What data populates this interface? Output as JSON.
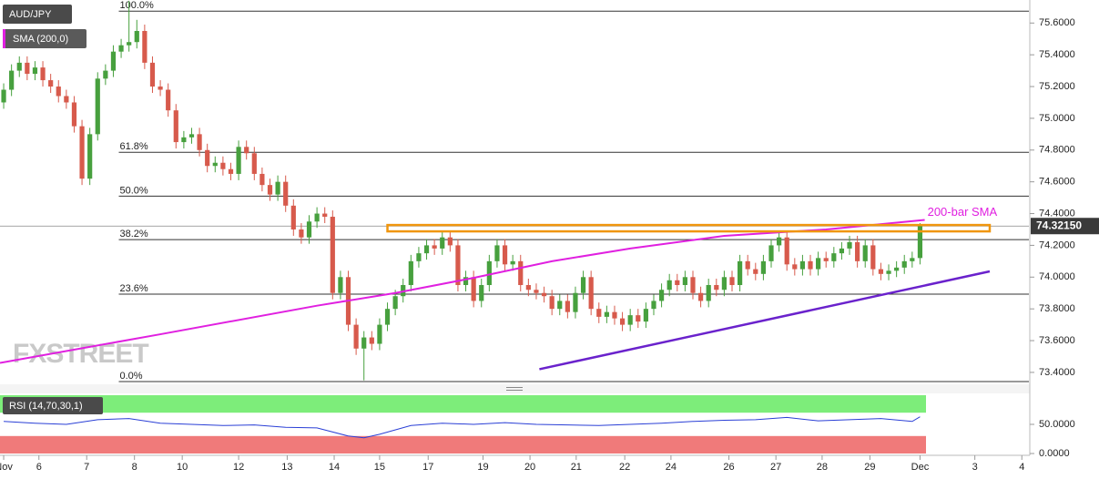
{
  "chart_data": [
    {
      "type": "candlestick",
      "title": "AUD/JPY",
      "up_color": "#47a03e",
      "down_color": "#d75a4c",
      "open": [
        75.1,
        75.18,
        75.3,
        75.35,
        75.28,
        75.32,
        75.24,
        75.2,
        75.14,
        75.1,
        74.95,
        74.62,
        74.9,
        75.25,
        75.3,
        75.42,
        75.46,
        75.48,
        75.55,
        75.35,
        75.2,
        75.18,
        75.05,
        74.85,
        74.88,
        74.9,
        74.8,
        74.7,
        74.72,
        74.68,
        74.65,
        74.82,
        74.78,
        74.65,
        74.58,
        74.52,
        74.6,
        74.45,
        74.3,
        74.25,
        74.35,
        74.4,
        74.38,
        73.9,
        74.0,
        73.7,
        73.55,
        73.62,
        73.58,
        73.7,
        73.8,
        73.88,
        73.95,
        74.1,
        74.15,
        74.2,
        74.18,
        74.25,
        74.2,
        73.95,
        74.0,
        73.85,
        73.95,
        74.1,
        74.2,
        74.08,
        74.1,
        73.95,
        73.92,
        73.9,
        73.88,
        73.8,
        73.85,
        73.78,
        73.9,
        74.0,
        73.8,
        73.75,
        73.78,
        73.74,
        73.7,
        73.76,
        73.72,
        73.8,
        73.85,
        73.92,
        73.98,
        73.95,
        74.0,
        73.9,
        73.85,
        73.95,
        73.92,
        74.0,
        73.95,
        74.1,
        74.05,
        74.02,
        74.1,
        74.2,
        74.25,
        74.08,
        74.05,
        74.1,
        74.05,
        74.12,
        74.1,
        74.15,
        74.18,
        74.22,
        74.1,
        74.2,
        74.05,
        74.02,
        74.04,
        74.06,
        74.1,
        74.12
      ],
      "high": [
        75.22,
        75.34,
        75.39,
        75.39,
        75.36,
        75.36,
        75.28,
        75.24,
        75.18,
        75.14,
        74.99,
        74.94,
        75.29,
        75.34,
        75.46,
        75.5,
        75.74,
        75.62,
        75.59,
        75.39,
        75.24,
        75.22,
        75.09,
        74.92,
        74.94,
        74.94,
        74.84,
        74.76,
        74.76,
        74.72,
        74.86,
        74.86,
        74.82,
        74.69,
        74.62,
        74.64,
        74.64,
        74.49,
        74.34,
        74.39,
        74.44,
        74.44,
        74.42,
        74.04,
        74.04,
        73.74,
        73.66,
        73.66,
        73.74,
        73.84,
        73.92,
        73.99,
        74.14,
        74.19,
        74.24,
        74.24,
        74.29,
        74.29,
        74.24,
        74.04,
        74.04,
        73.99,
        74.14,
        74.24,
        74.24,
        74.14,
        74.14,
        73.99,
        73.96,
        73.94,
        73.92,
        73.89,
        73.89,
        73.94,
        74.04,
        74.04,
        73.84,
        73.82,
        73.82,
        73.78,
        73.8,
        73.8,
        73.84,
        73.89,
        73.96,
        74.02,
        74.02,
        74.04,
        74.04,
        73.94,
        73.99,
        73.99,
        74.04,
        74.04,
        74.14,
        74.14,
        74.09,
        74.14,
        74.24,
        74.29,
        74.29,
        74.12,
        74.14,
        74.14,
        74.16,
        74.16,
        74.19,
        74.22,
        74.26,
        74.26,
        74.24,
        74.24,
        74.09,
        74.08,
        74.1,
        74.14,
        74.16,
        74.34
      ],
      "low": [
        75.06,
        75.14,
        75.26,
        75.24,
        75.24,
        75.2,
        75.16,
        75.1,
        75.06,
        74.91,
        74.58,
        74.58,
        74.86,
        75.21,
        75.26,
        75.38,
        75.42,
        75.44,
        75.31,
        75.16,
        75.14,
        75.01,
        74.81,
        74.81,
        74.84,
        74.76,
        74.66,
        74.66,
        74.64,
        74.61,
        74.61,
        74.74,
        74.61,
        74.54,
        74.48,
        74.48,
        74.41,
        74.26,
        74.21,
        74.21,
        74.31,
        74.34,
        73.86,
        73.86,
        73.66,
        73.51,
        73.35,
        73.54,
        73.54,
        73.66,
        73.76,
        73.84,
        73.91,
        74.06,
        74.11,
        74.14,
        74.14,
        74.16,
        73.91,
        73.91,
        73.81,
        73.81,
        73.91,
        74.06,
        74.04,
        74.04,
        73.91,
        73.88,
        73.86,
        73.84,
        73.76,
        73.76,
        73.74,
        73.74,
        73.86,
        73.76,
        73.71,
        73.71,
        73.7,
        73.66,
        73.66,
        73.68,
        73.68,
        73.76,
        73.81,
        73.88,
        73.91,
        73.91,
        73.86,
        73.81,
        73.81,
        73.88,
        73.88,
        73.91,
        73.91,
        74.01,
        73.98,
        73.98,
        74.06,
        74.16,
        74.04,
        74.01,
        74.01,
        74.01,
        74.01,
        74.06,
        74.06,
        74.11,
        74.14,
        74.06,
        74.06,
        74.01,
        73.98,
        73.98,
        74.0,
        74.02,
        74.06,
        74.08
      ],
      "close": [
        75.18,
        75.3,
        75.35,
        75.28,
        75.32,
        75.24,
        75.2,
        75.14,
        75.1,
        74.95,
        74.62,
        74.9,
        75.25,
        75.3,
        75.42,
        75.46,
        75.48,
        75.55,
        75.35,
        75.2,
        75.18,
        75.05,
        74.85,
        74.88,
        74.9,
        74.8,
        74.7,
        74.72,
        74.68,
        74.65,
        74.82,
        74.78,
        74.65,
        74.58,
        74.52,
        74.6,
        74.45,
        74.3,
        74.25,
        74.35,
        74.4,
        74.38,
        73.9,
        74.0,
        73.7,
        73.55,
        73.62,
        73.58,
        73.7,
        73.8,
        73.88,
        73.95,
        74.1,
        74.15,
        74.2,
        74.18,
        74.25,
        74.2,
        73.95,
        74.0,
        73.85,
        73.95,
        74.1,
        74.2,
        74.08,
        74.1,
        73.95,
        73.92,
        73.9,
        73.88,
        73.8,
        73.85,
        73.78,
        73.9,
        74.0,
        73.8,
        73.75,
        73.78,
        73.74,
        73.7,
        73.76,
        73.72,
        73.8,
        73.85,
        73.92,
        73.98,
        73.95,
        74.0,
        73.9,
        73.85,
        73.95,
        73.92,
        74.0,
        73.95,
        74.1,
        74.05,
        74.02,
        74.1,
        74.2,
        74.25,
        74.08,
        74.05,
        74.1,
        74.05,
        74.12,
        74.1,
        74.15,
        74.18,
        74.22,
        74.1,
        74.2,
        74.05,
        74.02,
        74.04,
        74.06,
        74.1,
        74.12,
        74.32
      ],
      "ylim": [
        73.325,
        75.745
      ],
      "yticks": [
        {
          "value": 73.4,
          "label": "73.4000"
        },
        {
          "value": 73.6,
          "label": "73.6000"
        },
        {
          "value": 73.8,
          "label": "73.8000"
        },
        {
          "value": 74.0,
          "label": "74.0000"
        },
        {
          "value": 74.2,
          "label": "74.2000"
        },
        {
          "value": 74.4,
          "label": "74.4000"
        },
        {
          "value": 74.6,
          "label": "74.6000"
        },
        {
          "value": 74.8,
          "label": "74.8000"
        },
        {
          "value": 75.0,
          "label": "75.0000"
        },
        {
          "value": 75.2,
          "label": "75.2000"
        },
        {
          "value": 75.4,
          "label": "75.4000"
        },
        {
          "value": 75.6,
          "label": "75.6000"
        }
      ],
      "xlim": [
        -0.47,
        130.9
      ],
      "xticks": [
        {
          "value": 0,
          "label": "Nov"
        },
        {
          "value": 4.5,
          "label": "6"
        },
        {
          "value": 10.6,
          "label": "7"
        },
        {
          "value": 16.7,
          "label": "8"
        },
        {
          "value": 22.8,
          "label": "10"
        },
        {
          "value": 30,
          "label": "12"
        },
        {
          "value": 36.2,
          "label": "13"
        },
        {
          "value": 42.2,
          "label": "14"
        },
        {
          "value": 48,
          "label": "15"
        },
        {
          "value": 54.2,
          "label": "17"
        },
        {
          "value": 61.2,
          "label": "19"
        },
        {
          "value": 67.2,
          "label": "20"
        },
        {
          "value": 73.1,
          "label": "21"
        },
        {
          "value": 79.3,
          "label": "22"
        },
        {
          "value": 85.2,
          "label": "24"
        },
        {
          "value": 92.6,
          "label": "26"
        },
        {
          "value": 98.6,
          "label": "27"
        },
        {
          "value": 104.5,
          "label": "28"
        },
        {
          "value": 110.6,
          "label": "29"
        },
        {
          "value": 117,
          "label": "Dec"
        },
        {
          "value": 124,
          "label": "3"
        },
        {
          "value": 130,
          "label": "4"
        }
      ],
      "sma": {
        "name": "SMA (200,0)",
        "color": "#e020e0",
        "annotation": "200-bar SMA",
        "x": [
          -0.47,
          20,
          40,
          50,
          60,
          70,
          80,
          92,
          105,
          117.6
        ],
        "values": [
          73.46,
          73.64,
          73.82,
          73.9,
          73.995,
          74.1,
          74.18,
          74.26,
          74.3,
          74.36
        ]
      },
      "fibonacci": {
        "start_x": 14.7,
        "levels": [
          {
            "value": 75.675,
            "label": "100.0%"
          },
          {
            "value": 74.786,
            "label": "61.8%"
          },
          {
            "value": 74.51,
            "label": "50.0%"
          },
          {
            "value": 74.236,
            "label": "38.2%"
          },
          {
            "value": 73.893,
            "label": "23.6%"
          },
          {
            "value": 73.342,
            "label": "0.0%"
          }
        ]
      },
      "resistance_zone": {
        "x": [
          49,
          125.9
        ],
        "from": 74.288,
        "to": 74.328,
        "color": "#f0960e"
      },
      "trendline": {
        "x": [
          68.4,
          125.9
        ],
        "values": [
          73.42,
          74.036
        ],
        "color": "#6a22cc"
      },
      "last_price": {
        "value": 74.3215,
        "label": "74.32150"
      },
      "watermark": "FXSTREET"
    },
    {
      "type": "line",
      "title": "RSI (14,70,30,1)",
      "series": [
        {
          "color": "#2a3fd6",
          "x": [
            0,
            4,
            8,
            12,
            16,
            20,
            24,
            28,
            32,
            36,
            40,
            44,
            46,
            48,
            52,
            56,
            60,
            64,
            68,
            72,
            76,
            80,
            84,
            88,
            92,
            96,
            100,
            104,
            108,
            112,
            116,
            117
          ],
          "values": [
            55,
            52,
            50,
            58,
            60,
            52,
            50,
            48,
            49,
            45,
            44,
            30,
            27,
            33,
            48,
            52,
            50,
            53,
            50,
            49,
            48,
            50,
            52,
            55,
            57,
            58,
            62,
            56,
            58,
            60,
            55,
            63
          ]
        }
      ],
      "ylim": [
        -3.1,
        103.1
      ],
      "yticks": [
        {
          "value": 50,
          "label": "50.0000"
        },
        {
          "value": 0,
          "label": "0.0000"
        }
      ],
      "bands": [
        {
          "from": 70,
          "to": 100,
          "color": "#7ded7a"
        },
        {
          "from": 0,
          "to": 30,
          "color": "#f07a7a"
        }
      ]
    }
  ]
}
